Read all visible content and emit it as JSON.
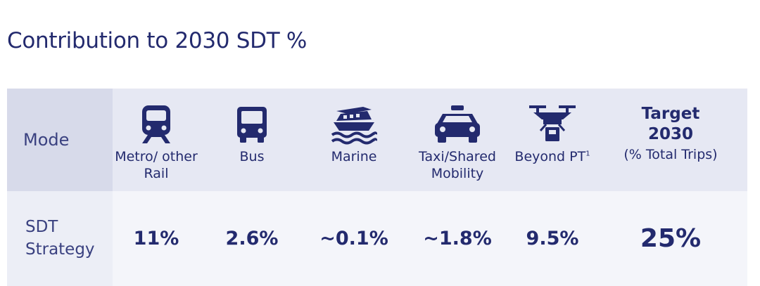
{
  "title": "Contribution to 2030 SDT %",
  "row_labels": {
    "mode": "Mode",
    "strategy": "SDT Strategy"
  },
  "modes": [
    {
      "label": "Metro/ other Rail",
      "icon": "train-icon",
      "value": "11%"
    },
    {
      "label": "Bus",
      "icon": "bus-icon",
      "value": "2.6%"
    },
    {
      "label": "Marine",
      "icon": "ferry-icon",
      "value": "~0.1%"
    },
    {
      "label": "Taxi/Shared Mobility",
      "icon": "taxi-icon",
      "value": "~1.8%"
    },
    {
      "label": "Beyond PT",
      "superscript": "1",
      "icon": "drone-icon",
      "value": "9.5%"
    }
  ],
  "target": {
    "line1": "Target 2030",
    "line2": "(% Total Trips)",
    "value": "25%"
  },
  "colors": {
    "navy": "#232a6e",
    "header_bg": "#e6e8f3",
    "row_bg": "#f4f5fa"
  }
}
